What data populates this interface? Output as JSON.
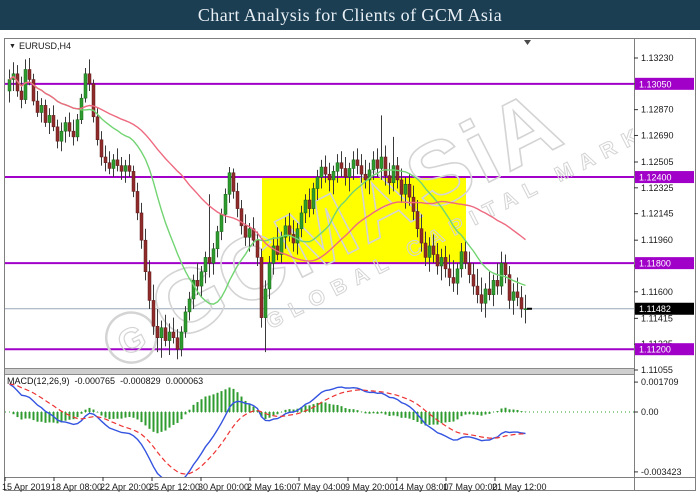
{
  "title_bar": {
    "text": "Chart Analysis for Clients of GCM Asia",
    "bg": "#1C3E53"
  },
  "icons": {
    "dropdown": "▼",
    "chart_shift": "▼"
  },
  "chart_window": {
    "symbol_label": "EURUSD,H4",
    "watermark": {
      "logo_letter": "G",
      "line1": "GCMASiA",
      "line2": "GLOBAL CAPITAL MARKETS"
    }
  },
  "chart_data": {
    "type": "candlestick",
    "title": "Chart Analysis for Clients of GCM Asia",
    "symbol": "EURUSD",
    "timeframe": "H4",
    "x_tick_labels": [
      "15 Apr 2019",
      "18 Apr 08:00",
      "22 Apr 20:00",
      "25 Apr 12:00",
      "30 Apr 00:00",
      "2 May 16:00",
      "7 May 04:00",
      "9 May 20:00",
      "14 May 08:00",
      "17 May 00:00",
      "21 May 12:00"
    ],
    "y_axis": {
      "tick_labels": [
        "1.13230",
        "1.13050",
        "1.12870",
        "1.12690",
        "1.12505",
        "1.12325",
        "1.12145",
        "1.11960",
        "1.11780",
        "1.11600",
        "1.11415",
        "1.11235",
        "1.11055"
      ],
      "ylim": [
        1.11055,
        1.1323
      ]
    },
    "levels": [
      {
        "label": "1.13050",
        "price": 1.1305,
        "color": "#A100C8"
      },
      {
        "label": "1.12400",
        "price": 1.124,
        "color": "#A100C8"
      },
      {
        "label": "1.11800",
        "price": 1.118,
        "color": "#A100C8"
      },
      {
        "label": "1.11200",
        "price": 1.112,
        "color": "#A100C8"
      }
    ],
    "bid": {
      "label": "1.11482",
      "price": 1.11482,
      "badge_color": "#000000",
      "line_color": "#9AA7B8"
    },
    "highlight_zone": {
      "from_bar": 64,
      "to_bar": 114,
      "price_top": 1.124,
      "price_bottom": 1.118,
      "color": "#FFFF00"
    },
    "moving_averages": [
      {
        "name": "MA fast",
        "period": 18,
        "color": "#72D472"
      },
      {
        "name": "MA slow",
        "period": 44,
        "color": "#EE6A80"
      }
    ],
    "colors": {
      "bull": "#2E9B2E",
      "bull_border": "#166616",
      "bear": "#8F2B2B",
      "bear_border": "#5E1A1A",
      "wick": "#3A3A3A"
    },
    "candles": [
      [
        1.13,
        1.1315,
        1.1292,
        1.1308
      ],
      [
        1.1308,
        1.132,
        1.13,
        1.1312
      ],
      [
        1.1312,
        1.1318,
        1.1296,
        1.13
      ],
      [
        1.13,
        1.131,
        1.1288,
        1.1294
      ],
      [
        1.1294,
        1.1322,
        1.1291,
        1.1315
      ],
      [
        1.1315,
        1.1323,
        1.1304,
        1.1308
      ],
      [
        1.1308,
        1.1312,
        1.129,
        1.1293
      ],
      [
        1.1293,
        1.13,
        1.1282,
        1.1285
      ],
      [
        1.1285,
        1.1295,
        1.1278,
        1.129
      ],
      [
        1.129,
        1.1294,
        1.1275,
        1.1278
      ],
      [
        1.1278,
        1.1288,
        1.127,
        1.1283
      ],
      [
        1.1283,
        1.129,
        1.1272,
        1.1275
      ],
      [
        1.1275,
        1.128,
        1.126,
        1.1265
      ],
      [
        1.1265,
        1.1278,
        1.1258,
        1.1272
      ],
      [
        1.1272,
        1.1282,
        1.1264,
        1.1278
      ],
      [
        1.1278,
        1.1285,
        1.1268,
        1.1272
      ],
      [
        1.1272,
        1.128,
        1.1262,
        1.1268
      ],
      [
        1.1268,
        1.1284,
        1.1265,
        1.128
      ],
      [
        1.128,
        1.1298,
        1.1277,
        1.1295
      ],
      [
        1.1295,
        1.1316,
        1.1292,
        1.1312
      ],
      [
        1.1312,
        1.1322,
        1.13,
        1.1305
      ],
      [
        1.1305,
        1.1308,
        1.1278,
        1.1282
      ],
      [
        1.1282,
        1.1288,
        1.1262,
        1.1266
      ],
      [
        1.1266,
        1.1272,
        1.1248,
        1.1254
      ],
      [
        1.1254,
        1.1262,
        1.1244,
        1.125
      ],
      [
        1.125,
        1.1258,
        1.1242,
        1.1246
      ],
      [
        1.1246,
        1.1256,
        1.124,
        1.1252
      ],
      [
        1.1252,
        1.126,
        1.1244,
        1.1248
      ],
      [
        1.1248,
        1.1254,
        1.1238,
        1.1244
      ],
      [
        1.1244,
        1.1252,
        1.1236,
        1.1248
      ],
      [
        1.1248,
        1.1256,
        1.124,
        1.1244
      ],
      [
        1.1244,
        1.1248,
        1.1226,
        1.123
      ],
      [
        1.123,
        1.1236,
        1.121,
        1.1215
      ],
      [
        1.1215,
        1.1222,
        1.119,
        1.1196
      ],
      [
        1.1196,
        1.1204,
        1.1168,
        1.1174
      ],
      [
        1.1174,
        1.1182,
        1.1148,
        1.1154
      ],
      [
        1.1154,
        1.1165,
        1.113,
        1.1136
      ],
      [
        1.1136,
        1.1148,
        1.1118,
        1.1128
      ],
      [
        1.1128,
        1.114,
        1.1114,
        1.1135
      ],
      [
        1.1135,
        1.1144,
        1.1122,
        1.1126
      ],
      [
        1.1126,
        1.1138,
        1.1116,
        1.1132
      ],
      [
        1.1132,
        1.1142,
        1.1124,
        1.1128
      ],
      [
        1.1128,
        1.1134,
        1.1113,
        1.112
      ],
      [
        1.112,
        1.1136,
        1.1115,
        1.1132
      ],
      [
        1.1132,
        1.115,
        1.1128,
        1.1146
      ],
      [
        1.1146,
        1.116,
        1.114,
        1.1155
      ],
      [
        1.1155,
        1.1172,
        1.1148,
        1.1168
      ],
      [
        1.1168,
        1.118,
        1.1158,
        1.1164
      ],
      [
        1.1164,
        1.1178,
        1.1156,
        1.1174
      ],
      [
        1.1174,
        1.1188,
        1.1166,
        1.1184
      ],
      [
        1.1184,
        1.1228,
        1.117,
        1.118
      ],
      [
        1.118,
        1.1194,
        1.1172,
        1.119
      ],
      [
        1.119,
        1.1206,
        1.1184,
        1.1202
      ],
      [
        1.1202,
        1.1218,
        1.1196,
        1.1214
      ],
      [
        1.1214,
        1.1232,
        1.1208,
        1.1228
      ],
      [
        1.1228,
        1.1247,
        1.1222,
        1.1243
      ],
      [
        1.1243,
        1.1246,
        1.1225,
        1.123
      ],
      [
        1.123,
        1.1236,
        1.1212,
        1.1218
      ],
      [
        1.1218,
        1.1224,
        1.12,
        1.1206
      ],
      [
        1.1206,
        1.1214,
        1.1192,
        1.1198
      ],
      [
        1.1198,
        1.1208,
        1.1188,
        1.1204
      ],
      [
        1.1204,
        1.1212,
        1.1192,
        1.1196
      ],
      [
        1.1196,
        1.1202,
        1.1178,
        1.1184
      ],
      [
        1.1184,
        1.119,
        1.1135,
        1.1142
      ],
      [
        1.1142,
        1.1168,
        1.1118,
        1.1162
      ],
      [
        1.1162,
        1.1185,
        1.1155,
        1.118
      ],
      [
        1.118,
        1.1198,
        1.1172,
        1.1192
      ],
      [
        1.1192,
        1.1205,
        1.1182,
        1.1186
      ],
      [
        1.1186,
        1.1202,
        1.118,
        1.1198
      ],
      [
        1.1198,
        1.1212,
        1.119,
        1.1206
      ],
      [
        1.1206,
        1.1215,
        1.1195,
        1.12
      ],
      [
        1.12,
        1.121,
        1.1188,
        1.1194
      ],
      [
        1.1194,
        1.1208,
        1.1186,
        1.1204
      ],
      [
        1.1204,
        1.122,
        1.1198,
        1.1215
      ],
      [
        1.1215,
        1.1228,
        1.1208,
        1.1224
      ],
      [
        1.1224,
        1.1232,
        1.1212,
        1.1218
      ],
      [
        1.1218,
        1.1236,
        1.1214,
        1.1232
      ],
      [
        1.1232,
        1.1245,
        1.1224,
        1.124
      ],
      [
        1.124,
        1.1252,
        1.1232,
        1.1247
      ],
      [
        1.1247,
        1.1255,
        1.1236,
        1.1242
      ],
      [
        1.1242,
        1.125,
        1.123,
        1.1238
      ],
      [
        1.1238,
        1.1248,
        1.1228,
        1.1244
      ],
      [
        1.1244,
        1.1256,
        1.1236,
        1.125
      ],
      [
        1.125,
        1.1258,
        1.124,
        1.1246
      ],
      [
        1.1246,
        1.1254,
        1.1234,
        1.124
      ],
      [
        1.124,
        1.125,
        1.123,
        1.1246
      ],
      [
        1.1246,
        1.1258,
        1.1238,
        1.1252
      ],
      [
        1.1252,
        1.126,
        1.1242,
        1.1248
      ],
      [
        1.1248,
        1.1256,
        1.1236,
        1.1242
      ],
      [
        1.1242,
        1.1252,
        1.1232,
        1.1238
      ],
      [
        1.1238,
        1.125,
        1.1228,
        1.1245
      ],
      [
        1.1245,
        1.1258,
        1.1238,
        1.1252
      ],
      [
        1.1252,
        1.126,
        1.124,
        1.1246
      ],
      [
        1.1246,
        1.1283,
        1.1238,
        1.1254
      ],
      [
        1.1254,
        1.1262,
        1.1234,
        1.1241
      ],
      [
        1.1241,
        1.125,
        1.1228,
        1.1236
      ],
      [
        1.1236,
        1.1268,
        1.123,
        1.1248
      ],
      [
        1.1248,
        1.1254,
        1.1232,
        1.1238
      ],
      [
        1.1238,
        1.1246,
        1.1222,
        1.1228
      ],
      [
        1.1228,
        1.124,
        1.1218,
        1.1235
      ],
      [
        1.1235,
        1.1242,
        1.122,
        1.1226
      ],
      [
        1.1226,
        1.1234,
        1.121,
        1.1216
      ],
      [
        1.1216,
        1.1224,
        1.1198,
        1.1204
      ],
      [
        1.1204,
        1.1214,
        1.1188,
        1.1194
      ],
      [
        1.1194,
        1.1202,
        1.1178,
        1.1184
      ],
      [
        1.1184,
        1.1198,
        1.1174,
        1.1192
      ],
      [
        1.1192,
        1.12,
        1.118,
        1.1186
      ],
      [
        1.1186,
        1.1194,
        1.1172,
        1.1178
      ],
      [
        1.1178,
        1.119,
        1.1168,
        1.1184
      ],
      [
        1.1184,
        1.1192,
        1.117,
        1.1176
      ],
      [
        1.1176,
        1.1186,
        1.1164,
        1.117
      ],
      [
        1.117,
        1.1182,
        1.116,
        1.1166
      ],
      [
        1.1166,
        1.118,
        1.1158,
        1.1176
      ],
      [
        1.1176,
        1.1194,
        1.117,
        1.1188
      ],
      [
        1.1188,
        1.1196,
        1.1176,
        1.118
      ],
      [
        1.118,
        1.1188,
        1.1166,
        1.1172
      ],
      [
        1.1172,
        1.118,
        1.1158,
        1.1164
      ],
      [
        1.1164,
        1.1176,
        1.1152,
        1.1158
      ],
      [
        1.1158,
        1.117,
        1.1146,
        1.1152
      ],
      [
        1.1152,
        1.1166,
        1.1142,
        1.1162
      ],
      [
        1.1162,
        1.1174,
        1.1154,
        1.1158
      ],
      [
        1.1158,
        1.1172,
        1.115,
        1.1168
      ],
      [
        1.1168,
        1.118,
        1.1158,
        1.1164
      ],
      [
        1.1164,
        1.1188,
        1.1158,
        1.118
      ],
      [
        1.118,
        1.1186,
        1.1166,
        1.1172
      ],
      [
        1.1172,
        1.1178,
        1.1148,
        1.1154
      ],
      [
        1.1154,
        1.1166,
        1.1144,
        1.116
      ],
      [
        1.116,
        1.117,
        1.115,
        1.1156
      ],
      [
        1.1156,
        1.1164,
        1.1142,
        1.1148
      ],
      [
        1.1148,
        1.1158,
        1.1138,
        1.11482
      ]
    ],
    "macd": {
      "label": "MACD(12,26,9)",
      "value_main": "-0.000765",
      "value_signal": "-0.000829",
      "value_hist": "0.000063",
      "scale_ticks": [
        "0.001709",
        "0.00",
        "-0.003423"
      ],
      "fast": 12,
      "slow": 26,
      "signal": 9,
      "colors": {
        "main": "#3454E0",
        "signal": "#EE3333",
        "histogram": "#2F9B2F"
      }
    }
  }
}
